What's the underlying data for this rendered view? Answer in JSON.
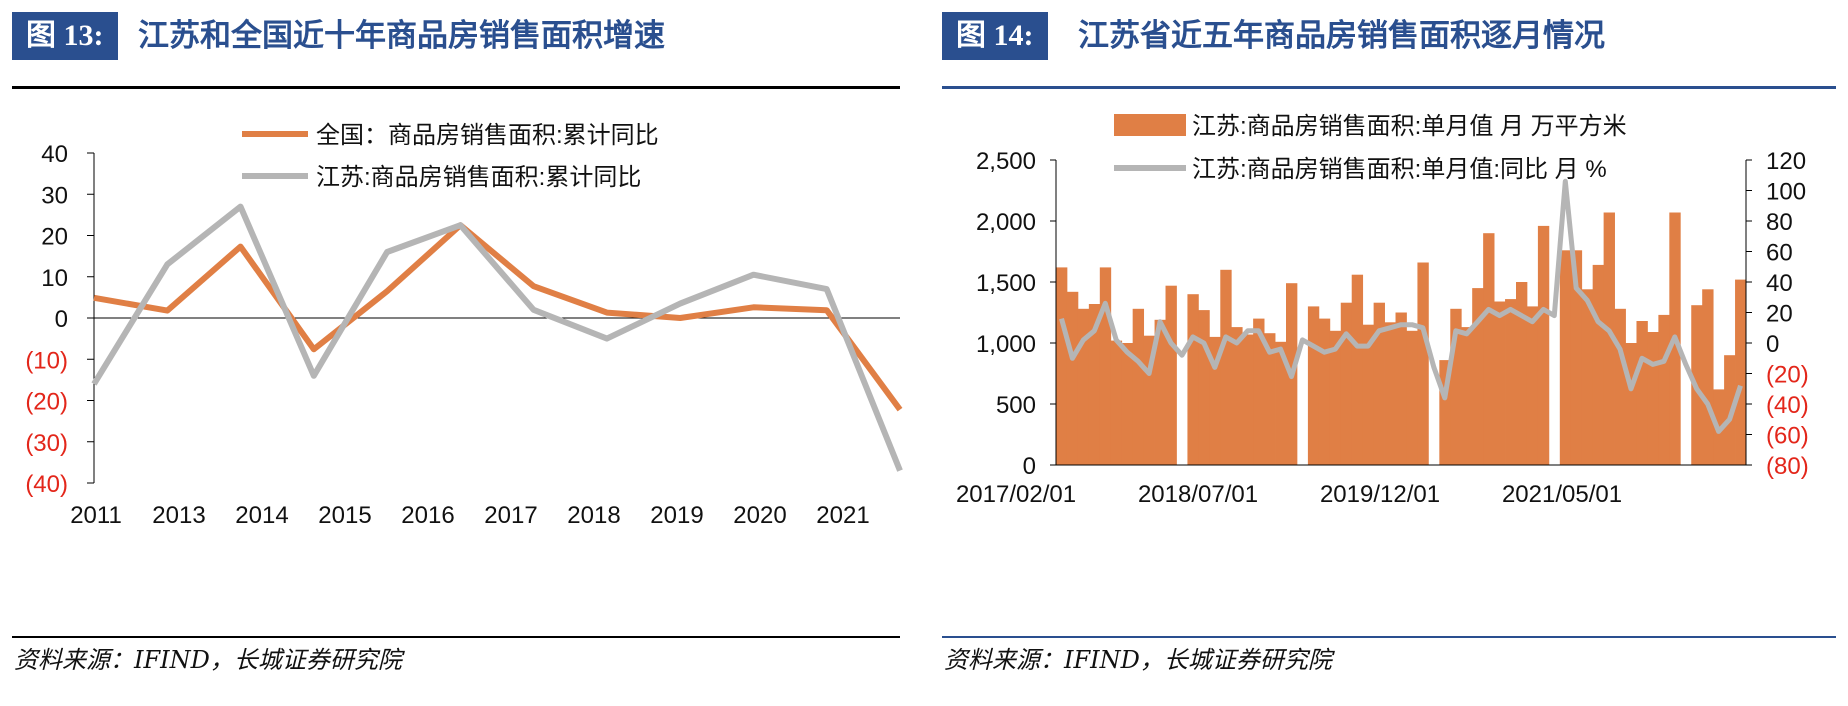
{
  "colors": {
    "orange": "#e07f45",
    "gray": "#b5b5b5",
    "navy": "#2a4f8f",
    "red": "#e3261a",
    "axis": "#000000"
  },
  "figures": [
    {
      "number": "图 13:",
      "title": "江苏和全国近十年商品房销售面积增速",
      "source": "资料来源：IFIND，长城证券研究院"
    },
    {
      "number": "图 14:",
      "title": "江苏省近五年商品房销售面积逐月情况",
      "source": "资料来源：IFIND，长城证券研究院"
    }
  ],
  "chart_data": [
    {
      "type": "line",
      "legend": [
        "全国：商品房销售面积:累计同比",
        "江苏:商品房销售面积:累计同比"
      ],
      "x_tick_labels": [
        "2011",
        "2013",
        "2014",
        "2015",
        "2016",
        "2017",
        "2018",
        "2019",
        "2020",
        "2021"
      ],
      "y_tick_labels": [
        "40",
        "30",
        "20",
        "10",
        "0",
        "(10)",
        "(20)",
        "(30)",
        "(40)"
      ],
      "ylim": [
        -40,
        40
      ],
      "series": [
        {
          "name": "全国：商品房销售面积:累计同比",
          "color": "#e07f45",
          "values": [
            4.9,
            1.8,
            17.3,
            -7.6,
            6.5,
            22.5,
            7.7,
            1.3,
            0,
            2.6,
            1.9,
            -22.2
          ]
        },
        {
          "name": "江苏:商品房销售面积:累计同比",
          "color": "#b5b5b5",
          "values": [
            -16,
            13,
            27,
            -14,
            16,
            22.5,
            2,
            -5,
            3.5,
            10.5,
            7,
            -37
          ]
        }
      ]
    },
    {
      "type": "bar+line",
      "legend": [
        "江苏:商品房销售面积:单月值 月 万平方米",
        "江苏:商品房销售面积:单月值:同比 月 %"
      ],
      "x_tick_labels": [
        "2017/02/01",
        "2018/07/01",
        "2019/12/01",
        "2021/05/01"
      ],
      "y_left_tick_labels": [
        "2,500",
        "2,000",
        "1,500",
        "1,000",
        "500",
        "0"
      ],
      "y_right_tick_labels": [
        "120",
        "100",
        "80",
        "60",
        "40",
        "20",
        "0",
        "(20)",
        "(40)",
        "(60)",
        "(80)"
      ],
      "ylim_left": [
        0,
        2500
      ],
      "ylim_right": [
        -80,
        120
      ],
      "bars": [
        1620,
        1420,
        1280,
        1320,
        1620,
        1020,
        1000,
        1280,
        1060,
        1190,
        1470,
        0,
        1400,
        1270,
        1050,
        1600,
        1130,
        1070,
        1200,
        1080,
        1010,
        1490,
        0,
        1300,
        1200,
        1100,
        1330,
        1560,
        1150,
        1330,
        1170,
        1250,
        1100,
        1660,
        0,
        860,
        1280,
        1130,
        1450,
        1900,
        1340,
        1360,
        1500,
        1300,
        1960,
        0,
        1760,
        1760,
        1440,
        1640,
        2070,
        1280,
        1000,
        1180,
        1090,
        1230,
        2070,
        0,
        1310,
        1440,
        620,
        900,
        1520
      ],
      "line": [
        16,
        -10,
        2,
        8,
        26,
        2,
        -6,
        -12,
        -20,
        14,
        0,
        -8,
        4,
        0,
        -16,
        4,
        0,
        8,
        8,
        -6,
        -4,
        -22,
        2,
        -2,
        -6,
        -4,
        6,
        -2,
        -2,
        8,
        10,
        12,
        12,
        10,
        -16,
        -36,
        8,
        6,
        14,
        22,
        18,
        22,
        18,
        14,
        22,
        18,
        106,
        36,
        28,
        14,
        8,
        -4,
        -30,
        -10,
        -14,
        -12,
        4,
        -14,
        -30,
        -40,
        -58,
        -50,
        -28
      ]
    }
  ]
}
